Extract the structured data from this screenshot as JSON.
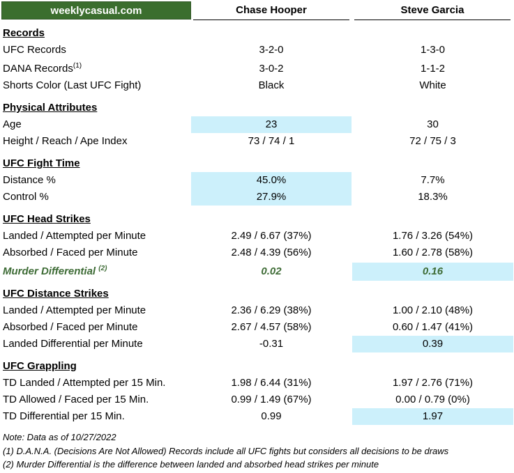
{
  "header": {
    "brand": "weeklycasual.com",
    "fighter1": "Chase Hooper",
    "fighter2": "Steve Garcia"
  },
  "sections": {
    "records": {
      "title": "Records",
      "ufc": {
        "label": "UFC Records",
        "f1": "3-2-0",
        "f2": "1-3-0"
      },
      "dana": {
        "label": "DANA Records",
        "sup": "(1)",
        "f1": "3-0-2",
        "f2": "1-1-2"
      },
      "shorts": {
        "label": "Shorts Color (Last UFC Fight)",
        "f1": "Black",
        "f2": "White"
      }
    },
    "physical": {
      "title": "Physical Attributes",
      "age": {
        "label": "Age",
        "f1": "23",
        "f2": "30"
      },
      "hra": {
        "label": "Height / Reach / Ape Index",
        "f1": "73 / 74 / 1",
        "f2": "72 / 75 / 3"
      }
    },
    "fight_time": {
      "title": "UFC Fight Time",
      "distance": {
        "label": "Distance %",
        "f1": "45.0%",
        "f2": "7.7%"
      },
      "control": {
        "label": "Control %",
        "f1": "27.9%",
        "f2": "18.3%"
      }
    },
    "head": {
      "title": "UFC Head Strikes",
      "landed": {
        "label": "Landed / Attempted per Minute",
        "f1": "2.49 / 6.67 (37%)",
        "f2": "1.76 / 3.26 (54%)"
      },
      "absorbed": {
        "label": "Absorbed / Faced per Minute",
        "f1": "2.48 / 4.39 (56%)",
        "f2": "1.60 / 2.78 (58%)"
      },
      "murder": {
        "label": "Murder Differential",
        "sup": "(2)",
        "f1": "0.02",
        "f2": "0.16"
      }
    },
    "distance": {
      "title": "UFC Distance Strikes",
      "landed": {
        "label": "Landed / Attempted per Minute",
        "f1": "2.36 / 6.29 (38%)",
        "f2": "1.00 / 2.10 (48%)"
      },
      "absorbed": {
        "label": "Absorbed / Faced per Minute",
        "f1": "2.67 / 4.57 (58%)",
        "f2": "0.60 / 1.47 (41%)"
      },
      "diff": {
        "label": "Landed Differential per Minute",
        "f1": "-0.31",
        "f2": "0.39"
      }
    },
    "grappling": {
      "title": "UFC Grappling",
      "td_landed": {
        "label": "TD Landed / Attempted per 15 Min.",
        "f1": "1.98 / 6.44 (31%)",
        "f2": "1.97 / 2.76 (71%)"
      },
      "td_allowed": {
        "label": "TD Allowed / Faced per 15 Min.",
        "f1": "0.99 / 1.49 (67%)",
        "f2": "0.00 / 0.79 (0%)"
      },
      "td_diff": {
        "label": "TD Differential per 15 Min.",
        "f1": "0.99",
        "f2": "1.97"
      }
    }
  },
  "notes": {
    "date": "Note: Data as of 10/27/2022",
    "n1": "(1) D.A.N.A. (Decisions Are Not Allowed) Records include all UFC fights but considers all decisions to be draws",
    "n2": "(2) Murder Differential is the difference between landed and absorbed head strikes per minute"
  },
  "colors": {
    "brand_bg": "#3b6e2e",
    "highlight": "#ccf0fb",
    "accent_text": "#3d6b35"
  }
}
